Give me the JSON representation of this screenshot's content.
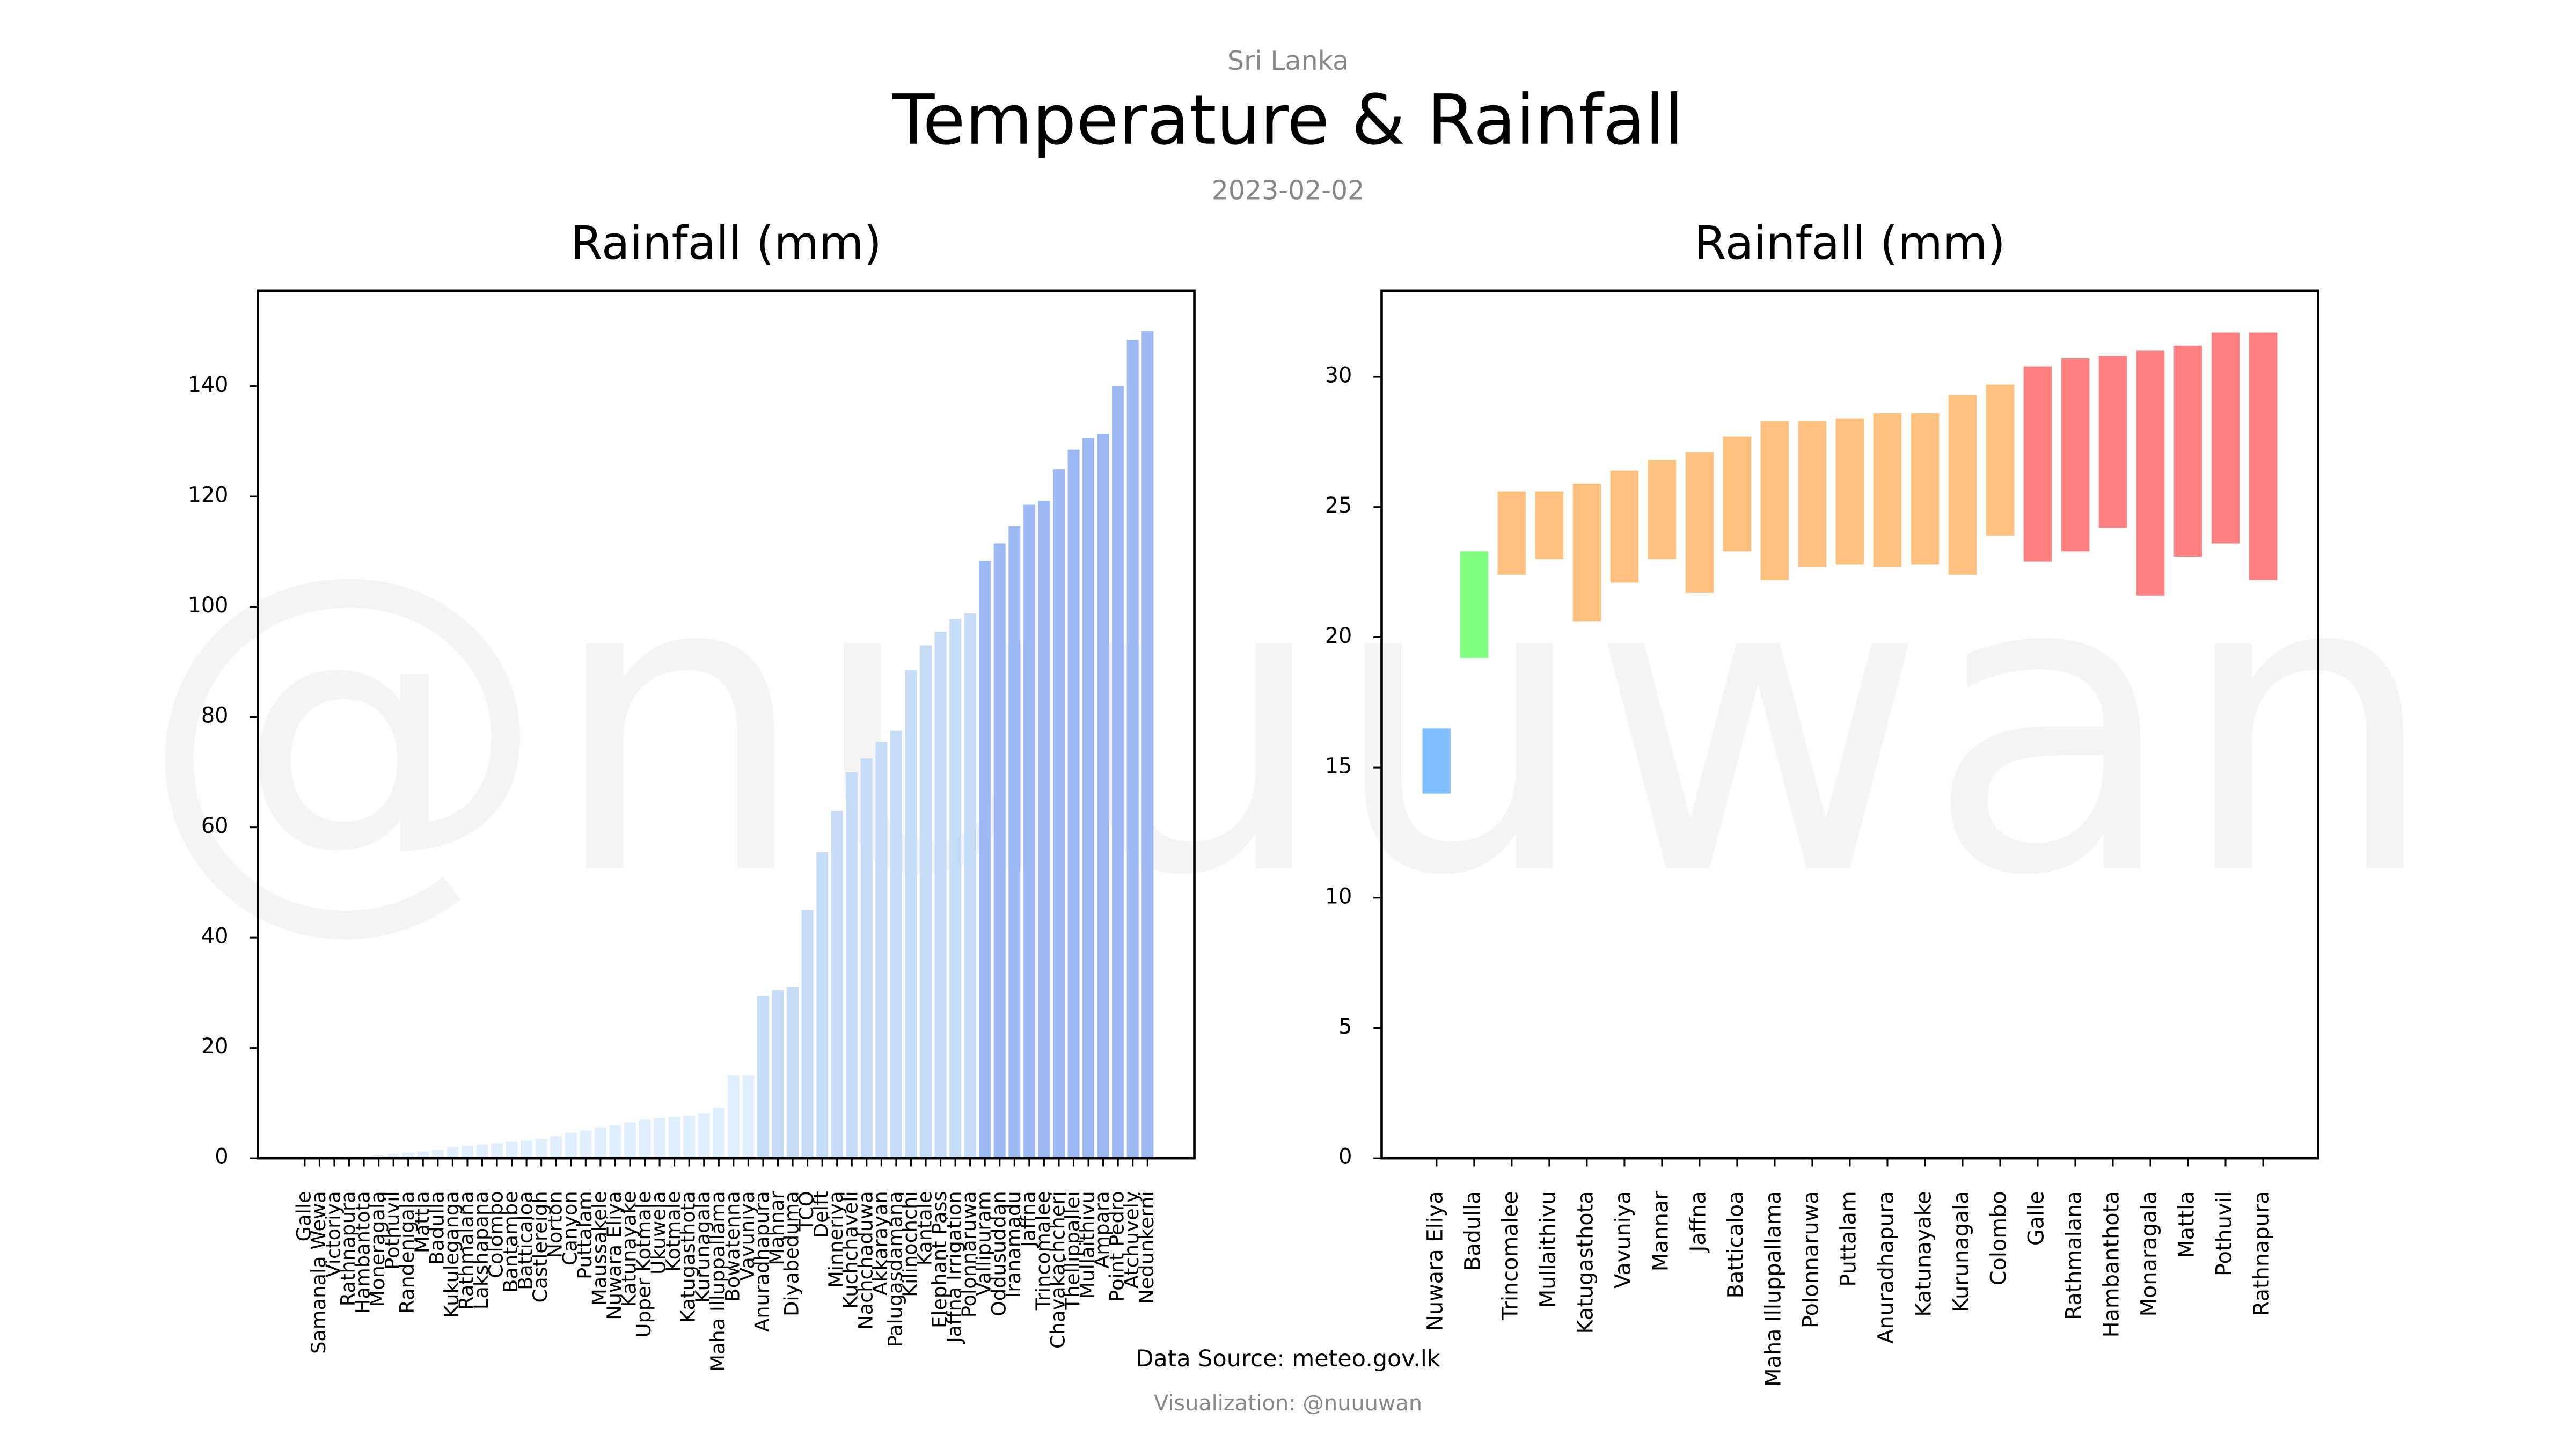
{
  "supertitle": "Sri Lanka",
  "title": "Temperature & Rainfall",
  "date": "2023-02-02",
  "watermark": "@nuuuwan",
  "source": "Data Source: meteo.gov.lk",
  "credit": "Visualization: @nuuuwan",
  "chart_data": [
    {
      "type": "bar",
      "title": "Rainfall (mm)",
      "categories": [
        "Galle",
        "Samanala Wewa",
        "Victoriya",
        "Rathnapura",
        "Hambantota",
        "Moneragala",
        "Pothuvil",
        "Randenigala",
        "Mattla",
        "Badulla",
        "Kukuleganga",
        "Rathmalana",
        "Lakshapana",
        "Colombo",
        "Bantambe",
        "Batticaloa",
        "Castlereigh",
        "Norton",
        "Canyon",
        "Puttalam",
        "Maussakele",
        "Nuwara Eliya",
        "Katunayake",
        "Upper Kotmale",
        "Ukuwela",
        "Kotmale",
        "Katugasthota",
        "Kurunagala",
        "Maha Illuppallama",
        "Bowatenna",
        "Vavuniya",
        "Anuradhapura",
        "Mannar",
        "Diyabeduma",
        "TCO",
        "Delft",
        "Minneriya",
        "Kuchchaveli",
        "Nachchaduwa",
        "Akkarayan",
        "Palugasdamana",
        "Kilinochchi",
        "Kantale",
        "Elephant Pass",
        "Jaffna Irrigation",
        "Polonnaruwa",
        "Vallipuram",
        "Oddusuddan",
        "Iranamadu",
        "Jaffna",
        "Trincomalee",
        "Chavakachcheri",
        "Thellippallei",
        "Mullaithivu",
        "Ampara",
        "Point Pedro",
        "Atchuvely",
        "Nedunkerni"
      ],
      "values": [
        0,
        0,
        0,
        0,
        0.2,
        0.5,
        0.8,
        1,
        1.2,
        1.5,
        2,
        2.2,
        2.5,
        2.7,
        3,
        3.2,
        3.5,
        4,
        4.6,
        5,
        5.6,
        6,
        6.5,
        7,
        7.3,
        7.5,
        7.7,
        8.2,
        9.2,
        15,
        15,
        29.5,
        30.5,
        31,
        45,
        55.5,
        63,
        70,
        72.5,
        75.5,
        77.5,
        88.5,
        93,
        95.5,
        97.8,
        98.8,
        108.3,
        111.5,
        114.6,
        118.5,
        119.2,
        125,
        128.5,
        130.6,
        131.4,
        140,
        148.4,
        150
      ],
      "colors": [
        "#e0efff",
        "#e0efff",
        "#e0efff",
        "#e0efff",
        "#e0efff",
        "#e0efff",
        "#e0efff",
        "#e0efff",
        "#e0efff",
        "#e0efff",
        "#e0efff",
        "#e0efff",
        "#e0efff",
        "#e0efff",
        "#e0efff",
        "#e0efff",
        "#e0efff",
        "#e0efff",
        "#e0efff",
        "#e0efff",
        "#e0efff",
        "#e0efff",
        "#e0efff",
        "#e0efff",
        "#e0efff",
        "#e0efff",
        "#e0efff",
        "#e0efff",
        "#e0efff",
        "#e0efff",
        "#e0efff",
        "#c6ddf7",
        "#c6ddf7",
        "#c6ddf7",
        "#c6ddf7",
        "#c6ddf7",
        "#c6ddf7",
        "#c6ddf7",
        "#c6ddf7",
        "#c6ddf7",
        "#c6ddf7",
        "#c6ddf7",
        "#c6ddf7",
        "#c6ddf7",
        "#c6ddf7",
        "#c6ddf7",
        "#9cb9f4",
        "#9cb9f4",
        "#9cb9f4",
        "#9cb9f4",
        "#9cb9f4",
        "#9cb9f4",
        "#9cb9f4",
        "#9cb9f4",
        "#9cb9f4",
        "#9cb9f4",
        "#9cb9f4",
        "#9cb9f4"
      ],
      "ylim": [
        0,
        157.3
      ],
      "yticks": [
        0,
        20,
        40,
        60,
        80,
        100,
        120,
        140
      ],
      "grid": false
    },
    {
      "type": "floating_bar",
      "title": "Rainfall (mm)",
      "categories": [
        "Nuwara Eliya",
        "Badulla",
        "Trincomalee",
        "Mullaithivu",
        "Katugasthota",
        "Vavuniya",
        "Mannar",
        "Jaffna",
        "Batticaloa",
        "Maha Illuppallama",
        "Polonnaruwa",
        "Puttalam",
        "Anuradhapura",
        "Katunayake",
        "Kurunagala",
        "Colombo",
        "Galle",
        "Rathmalana",
        "Hambanthota",
        "Monaragala",
        "Mattla",
        "Pothuvil",
        "Rathnapura"
      ],
      "low": [
        14,
        19.2,
        22.4,
        23,
        20.6,
        22.1,
        23,
        21.7,
        23.3,
        22.2,
        22.7,
        22.8,
        22.7,
        22.8,
        22.4,
        23.9,
        22.9,
        23.3,
        24.2,
        21.6,
        23.1,
        23.6,
        22.2
      ],
      "high": [
        16.5,
        23.3,
        25.6,
        25.6,
        25.9,
        26.4,
        26.8,
        27.1,
        27.7,
        28.3,
        28.3,
        28.4,
        28.6,
        28.6,
        29.3,
        29.7,
        30.4,
        30.7,
        30.8,
        31,
        31.2,
        31.7,
        31.7
      ],
      "colors": [
        "#80bfff",
        "#80ff80",
        "#ffc080",
        "#ffc080",
        "#ffc080",
        "#ffc080",
        "#ffc080",
        "#ffc080",
        "#ffc080",
        "#ffc080",
        "#ffc080",
        "#ffc080",
        "#ffc080",
        "#ffc080",
        "#ffc080",
        "#ffc080",
        "#ff8080",
        "#ff8080",
        "#ff8080",
        "#ff8080",
        "#ff8080",
        "#ff8080",
        "#ff8080"
      ],
      "ylim": [
        0,
        33.3
      ],
      "yticks": [
        0,
        5,
        10,
        15,
        20,
        25,
        30
      ],
      "grid": false
    }
  ]
}
